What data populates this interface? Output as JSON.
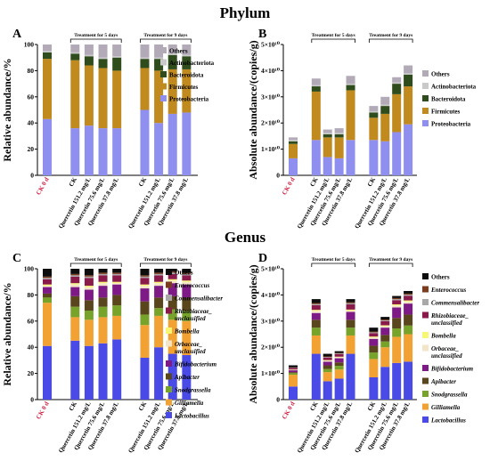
{
  "sections": [
    "Phylum",
    "Genus"
  ],
  "chart_data": [
    {
      "panel": "A",
      "type": "bar",
      "stacked": true,
      "ylabel": "Relative abundance/%",
      "ylim": [
        0,
        100
      ],
      "yticks": [
        "0",
        "20",
        "40",
        "60",
        "80",
        "100"
      ],
      "categories": [
        "CK 0 d",
        "CK",
        "Quercetin 151.2 mg/L",
        "Quercetin 75.6 mg/L",
        "Quercetin 37.8 mg/L",
        "CK",
        "Quercetin 151.2 mg/L",
        "Quercetin 75.6 mg/L",
        "Quercetin 37.8 mg/L"
      ],
      "groups": [
        "Treatment for 5 days",
        "Treatment for 9 days"
      ],
      "legend": [
        "Others",
        "Actinobacteriota",
        "Bacteroidota",
        "Firmicutes",
        "Proteobacteria"
      ],
      "series": [
        {
          "name": "Proteobacteria",
          "color": "#8f8ff0",
          "values": [
            43,
            36,
            38,
            36,
            36,
            50,
            40,
            47,
            48
          ]
        },
        {
          "name": "Firmicutes",
          "color": "#c08a1e",
          "values": [
            46,
            52,
            46,
            46,
            44,
            32,
            40,
            34,
            33
          ]
        },
        {
          "name": "Bacteroidota",
          "color": "#2f4d1c",
          "values": [
            5,
            5,
            7,
            7,
            10,
            7,
            9,
            11,
            10
          ]
        },
        {
          "name": "Actinobacteriota",
          "color": "#c9c9c9",
          "values": [
            1,
            1,
            1,
            1,
            1,
            1,
            1,
            1,
            1
          ]
        },
        {
          "name": "Others",
          "color": "#b3aab8",
          "values": [
            5,
            6,
            8,
            10,
            9,
            10,
            10,
            7,
            8
          ]
        }
      ]
    },
    {
      "panel": "B",
      "type": "bar",
      "stacked": true,
      "ylabel": "Absolute abundance/(copies/g)",
      "ylim": [
        0,
        5
      ],
      "yticks": [
        "0",
        "1×10¹⁰",
        "2×10¹⁰",
        "3×10¹⁰",
        "4×10¹⁰",
        "5×10¹⁰"
      ],
      "categories": [
        "CK 0 d",
        "CK",
        "Quercetin 151.2 mg/L",
        "Quercetin 75.6 mg/L",
        "Quercetin 37.8 mg/L",
        "CK",
        "Quercetin 151.2 mg/L",
        "Quercetin 75.6 mg/L",
        "Quercetin 37.8 mg/L"
      ],
      "groups": [
        "Treatment for 5 days",
        "Treatment for 9 days"
      ],
      "legend": [
        "Others",
        "Actinobacteriota",
        "Bacteroidota",
        "Firmicutes",
        "Proteobacteria"
      ],
      "series": [
        {
          "name": "Proteobacteria",
          "color": "#8f8ff0",
          "values": [
            0.65,
            1.35,
            0.7,
            0.65,
            1.35,
            1.35,
            1.3,
            1.65,
            1.95
          ]
        },
        {
          "name": "Firmicutes",
          "color": "#c08a1e",
          "values": [
            0.55,
            1.85,
            0.75,
            0.8,
            1.9,
            0.85,
            1.05,
            1.45,
            1.45
          ]
        },
        {
          "name": "Bacteroidota",
          "color": "#2f4d1c",
          "values": [
            0.1,
            0.2,
            0.12,
            0.12,
            0.2,
            0.2,
            0.3,
            0.4,
            0.45
          ]
        },
        {
          "name": "Actinobacteriota",
          "color": "#c9c9c9",
          "values": [
            0.05,
            0.05,
            0.05,
            0.05,
            0.05,
            0.05,
            0.05,
            0.05,
            0.05
          ]
        },
        {
          "name": "Others",
          "color": "#b3aab8",
          "values": [
            0.1,
            0.25,
            0.13,
            0.18,
            0.3,
            0.2,
            0.3,
            0.2,
            0.3
          ]
        }
      ]
    },
    {
      "panel": "C",
      "type": "bar",
      "stacked": true,
      "ylabel": "Relative abundance/%",
      "ylim": [
        0,
        100
      ],
      "yticks": [
        "0",
        "20",
        "40",
        "60",
        "80",
        "100"
      ],
      "categories": [
        "CK 0 d",
        "CK",
        "Quercetin 151.2 mg/L",
        "Quercetin 75.6 mg/L",
        "Quercetin 37.8 mg/L",
        "CK",
        "Quercetin 151.2 mg/L",
        "Quercetin 75.6 mg/L",
        "Quercetin 37.8 mg/L"
      ],
      "groups": [
        "Treatment for 5 days",
        "Treatment for 9 days"
      ],
      "legend": [
        "Others",
        "Enterococcus",
        "Commensalibacter",
        "Rhizobiaceae_ unclassified",
        "Bombella",
        "Orbaceae_ unclassified",
        "Bifidobacterium",
        "Apibacter",
        "Snodgrassella",
        "Gilliamella",
        "Lactobacillus"
      ],
      "series": [
        {
          "name": "Lactobacillus",
          "color": "#4a4ae6",
          "values": [
            41,
            45,
            41,
            43,
            46,
            32,
            40,
            35,
            34
          ]
        },
        {
          "name": "Gilliamella",
          "color": "#f2a233",
          "values": [
            33,
            18,
            20,
            20,
            18,
            25,
            24,
            26,
            26
          ]
        },
        {
          "name": "Snodgrassella",
          "color": "#77a32a",
          "values": [
            4,
            8,
            7,
            8,
            8,
            8,
            6,
            8,
            8
          ]
        },
        {
          "name": "Apibacter",
          "color": "#5a461c",
          "values": [
            3,
            8,
            8,
            7,
            8,
            10,
            8,
            10,
            10
          ]
        },
        {
          "name": "Bifidobacterium",
          "color": "#7d1a86",
          "values": [
            5,
            7,
            8,
            9,
            8,
            10,
            9,
            10,
            10
          ]
        },
        {
          "name": "Orbaceae_ unclassified",
          "color": "#f3e6c8",
          "values": [
            1,
            2,
            2,
            2,
            1,
            2,
            2,
            2,
            2
          ]
        },
        {
          "name": "Bombella",
          "color": "#f7f774",
          "values": [
            1,
            1,
            1,
            1,
            1,
            1,
            1,
            1,
            1
          ]
        },
        {
          "name": "Rhizobiaceae_ unclassified",
          "color": "#8a1a4a",
          "values": [
            4,
            5,
            6,
            5,
            5,
            5,
            5,
            4,
            4
          ]
        },
        {
          "name": "Commensalibacter",
          "color": "#a8a8a8",
          "values": [
            1,
            1,
            1,
            1,
            1,
            1,
            1,
            1,
            1
          ]
        },
        {
          "name": "Enterococcus",
          "color": "#7a3c1c",
          "values": [
            1,
            1,
            1,
            1,
            1,
            1,
            1,
            1,
            1
          ]
        },
        {
          "name": "Others",
          "color": "#0d0d0d",
          "values": [
            6,
            4,
            5,
            3,
            3,
            5,
            3,
            2,
            3
          ]
        }
      ]
    },
    {
      "panel": "D",
      "type": "bar",
      "stacked": true,
      "ylabel": "Absolute abundance/(copies/g)",
      "ylim": [
        0,
        5
      ],
      "yticks": [
        "0",
        "1×10¹⁰",
        "2×10¹⁰",
        "3×10¹⁰",
        "4×10¹⁰",
        "5×10¹⁰"
      ],
      "categories": [
        "CK 0 d",
        "CK",
        "Quercetin 151.2 mg/L",
        "Quercetin 75.6 mg/L",
        "Quercetin 37.8 mg/L",
        "CK",
        "Quercetin 151.2 mg/L",
        "Quercetin 75.6 mg/L",
        "Quercetin 37.8 mg/L"
      ],
      "groups": [
        "Treatment for 5 days",
        "Treatment for 9 days"
      ],
      "legend": [
        "Others",
        "Enterococcus",
        "Commensalibacter",
        "Rhizobiaceae_ unclassified",
        "Bombella",
        "Orbaceae_ unclassified",
        "Bifidobacterium",
        "Apibacter",
        "Snodgrassella",
        "Gilliamella",
        "Lactobacillus"
      ],
      "series": [
        {
          "name": "Lactobacillus",
          "color": "#4a4ae6",
          "values": [
            0.5,
            1.75,
            0.7,
            0.8,
            1.75,
            0.85,
            1.25,
            1.4,
            1.45
          ]
        },
        {
          "name": "Gilliamella",
          "color": "#f2a233",
          "values": [
            0.45,
            0.7,
            0.35,
            0.35,
            0.7,
            0.7,
            0.75,
            1.0,
            1.05
          ]
        },
        {
          "name": "Snodgrassella",
          "color": "#77a32a",
          "values": [
            0.06,
            0.3,
            0.12,
            0.14,
            0.3,
            0.25,
            0.22,
            0.32,
            0.33
          ]
        },
        {
          "name": "Apibacter",
          "color": "#5a461c",
          "values": [
            0.04,
            0.3,
            0.14,
            0.13,
            0.3,
            0.26,
            0.25,
            0.4,
            0.42
          ]
        },
        {
          "name": "Bifidobacterium",
          "color": "#7d1a86",
          "values": [
            0.07,
            0.26,
            0.14,
            0.16,
            0.3,
            0.26,
            0.28,
            0.4,
            0.42
          ]
        },
        {
          "name": "Orbaceae_ unclassified",
          "color": "#f3e6c8",
          "values": [
            0.02,
            0.08,
            0.04,
            0.04,
            0.05,
            0.06,
            0.06,
            0.08,
            0.08
          ]
        },
        {
          "name": "Bombella",
          "color": "#f7f774",
          "values": [
            0.01,
            0.04,
            0.02,
            0.02,
            0.04,
            0.03,
            0.03,
            0.04,
            0.04
          ]
        },
        {
          "name": "Rhizobiaceae_ unclassified",
          "color": "#8a1a4a",
          "values": [
            0.06,
            0.18,
            0.1,
            0.1,
            0.2,
            0.13,
            0.16,
            0.16,
            0.18
          ]
        },
        {
          "name": "Commensalibacter",
          "color": "#a8a8a8",
          "values": [
            0.01,
            0.04,
            0.02,
            0.02,
            0.04,
            0.03,
            0.03,
            0.04,
            0.04
          ]
        },
        {
          "name": "Enterococcus",
          "color": "#7a3c1c",
          "values": [
            0.01,
            0.04,
            0.02,
            0.02,
            0.04,
            0.03,
            0.03,
            0.04,
            0.04
          ]
        },
        {
          "name": "Others",
          "color": "#0d0d0d",
          "values": [
            0.08,
            0.15,
            0.1,
            0.07,
            0.12,
            0.15,
            0.1,
            0.08,
            0.1
          ]
        }
      ]
    }
  ]
}
